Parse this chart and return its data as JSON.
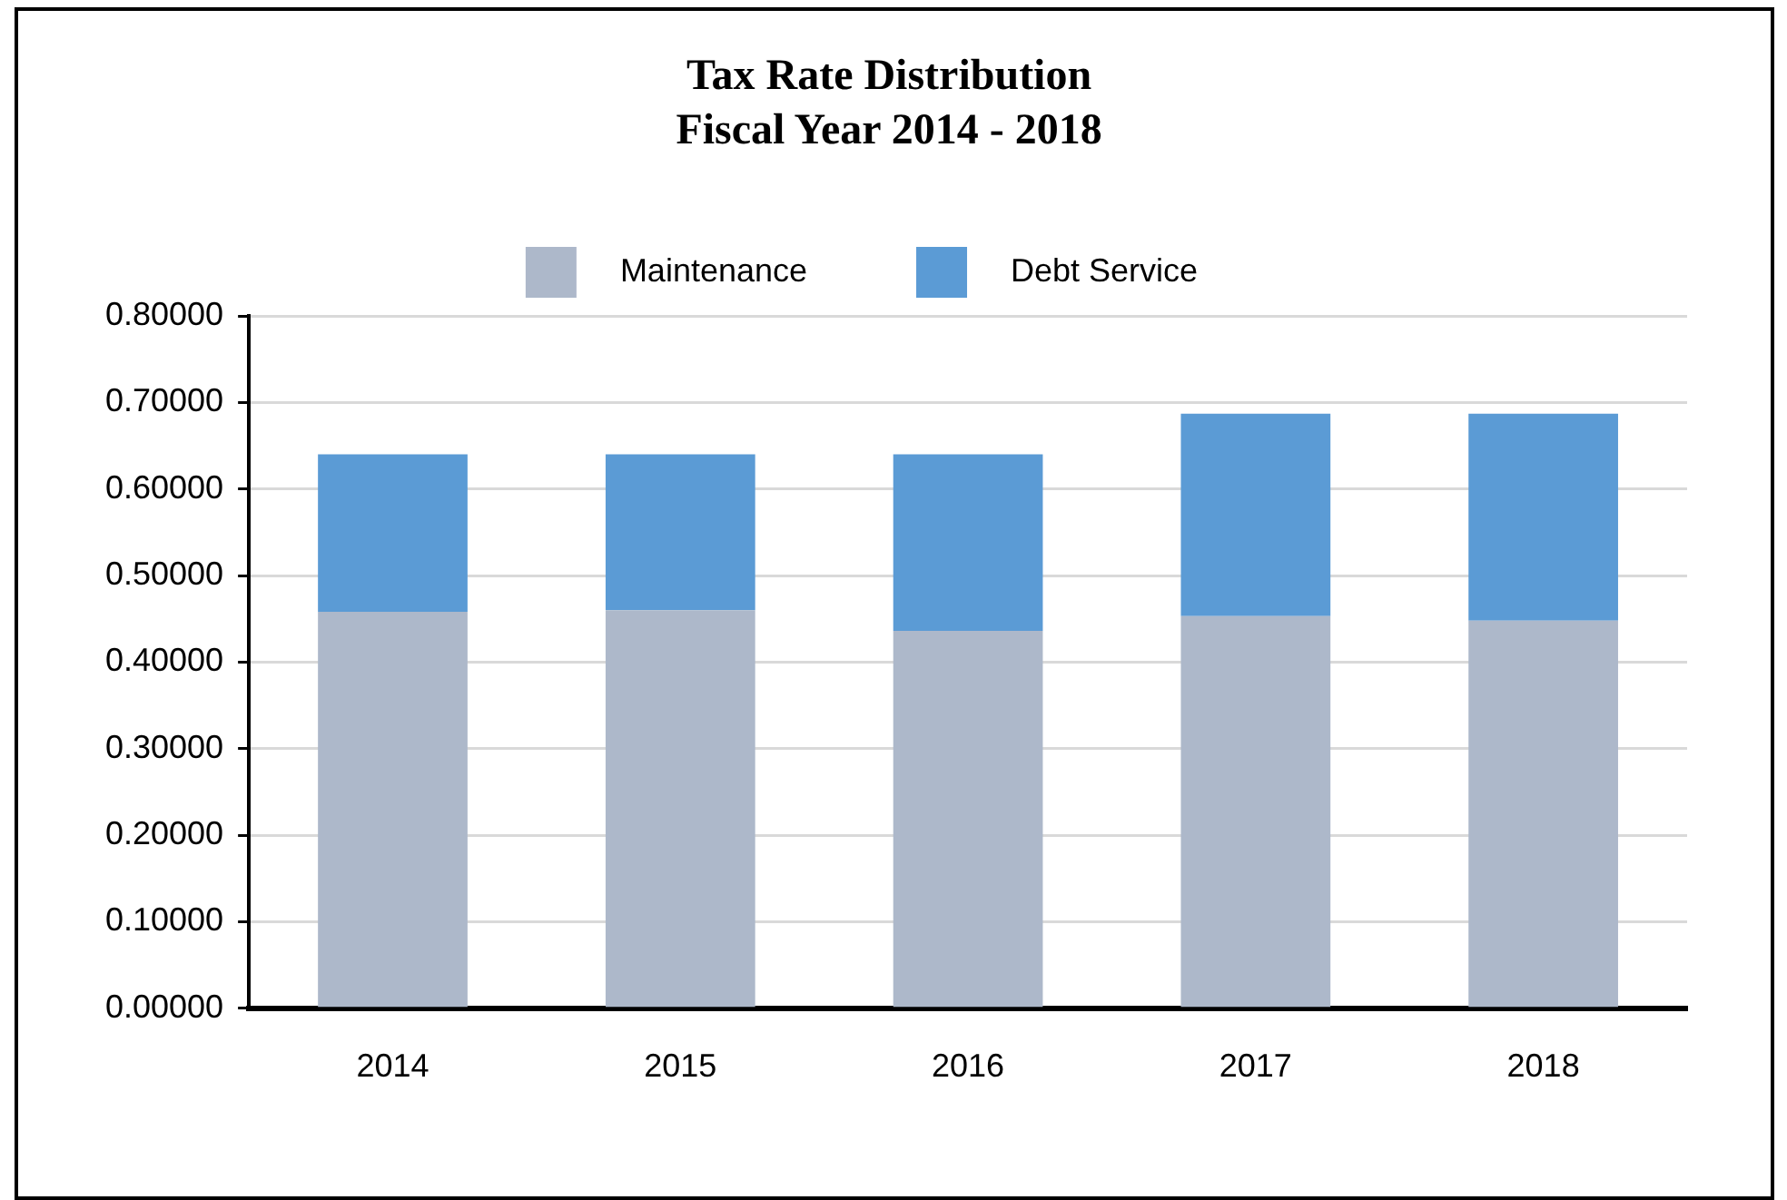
{
  "chart_data": {
    "type": "bar",
    "title": "Tax Rate Distribution\nFiscal Year 2014 - 2018",
    "categories": [
      "2014",
      "2015",
      "2016",
      "2017",
      "2018"
    ],
    "stacked": true,
    "series": [
      {
        "name": "Maintenance",
        "color": "#adb8ca",
        "values": [
          0.458,
          0.46,
          0.436,
          0.453,
          0.448
        ]
      },
      {
        "name": "Debt Service",
        "color": "#5b9bd5",
        "values": [
          0.182,
          0.18,
          0.204,
          0.234,
          0.239
        ]
      }
    ],
    "ylim": [
      0,
      0.8
    ],
    "yticks": [
      {
        "value": 0,
        "label": "0.00000"
      },
      {
        "value": 0.1,
        "label": "0.10000"
      },
      {
        "value": 0.2,
        "label": "0.20000"
      },
      {
        "value": 0.3,
        "label": "0.30000"
      },
      {
        "value": 0.4,
        "label": "0.40000"
      },
      {
        "value": 0.5,
        "label": "0.50000"
      },
      {
        "value": 0.6,
        "label": "0.60000"
      },
      {
        "value": 0.7,
        "label": "0.70000"
      },
      {
        "value": 0.8,
        "label": "0.80000"
      }
    ],
    "grid": "y",
    "legend": "top"
  }
}
